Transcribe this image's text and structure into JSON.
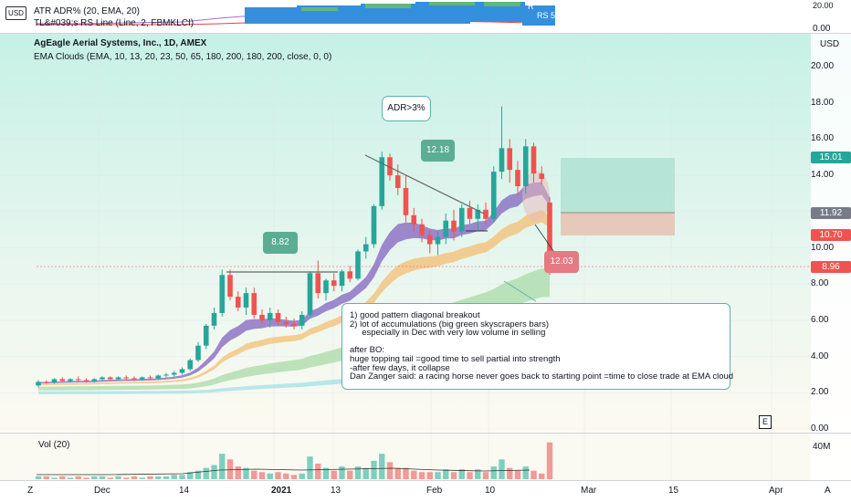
{
  "header": {
    "currency_top": "USD",
    "indicator1": "ATR ADR% (20, EMA, 20)",
    "indicator2": "TL&#039;s RS Line (Line, 2, FBMKLCI)",
    "rs_badge": "RS 5",
    "main_currency": "USD",
    "main_title": "AgEagle Aerial Systems, Inc., 1D, AMEX",
    "ema_line": "EMA Clouds (EMA, 10, 13, 20, 23, 50, 65, 180, 200, 180, 200, close, 0, 0)"
  },
  "top_pane_axis": {
    "top": "20.00",
    "bottom": "0.00",
    "currency": "USD"
  },
  "price_axis": [
    "20.00",
    "18.00",
    "16.00",
    "14.00",
    "12.00",
    "10.00",
    "8.00",
    "6.00",
    "4.00",
    "2.00",
    "0.00"
  ],
  "price_tags": [
    {
      "value": "15.01",
      "color": "#26a69a"
    },
    {
      "value": "11.92",
      "color": "#787b86"
    },
    {
      "value": "10.70",
      "color": "#ef5350"
    },
    {
      "value": "8.96",
      "color": "#ef5350"
    }
  ],
  "volume": {
    "label": "Vol (20)",
    "axis_max": "40M"
  },
  "time_axis": {
    "items": [
      "Dec",
      "14",
      "2021",
      "13",
      "Feb",
      "10",
      "Mar",
      "15",
      "Apr"
    ]
  },
  "corner_labels": {
    "left": "Z",
    "right": "A",
    "e_button": "E"
  },
  "annotations": {
    "adr": "ADR>3%",
    "c1": "8.82",
    "c2": "12.18",
    "c3": "12.03",
    "note": [
      "1) good pattern diagonal breakout",
      "2) lot of accumulations (big green skyscrapers bars)",
      "     especially in Dec with very low volume in selling",
      "",
      "after BO:",
      "huge topping tail =good time to sell partial into strength",
      "-after few days, it collapse",
      "Dan Zanger said: a racing horse never goes back to starting point =time to close trade at EMA cloud"
    ]
  },
  "colors": {
    "up": "#26a69a",
    "down": "#ef5350",
    "bg_top": "#c6f1e6",
    "bg_bottom": "#fdfaf0",
    "cloud_fast": "#8e74c6",
    "cloud_mid": "#f4c27a",
    "cloud_slow": "#a5d9a4",
    "cloud_long": "#a6e2e9"
  },
  "chart_data": {
    "type": "candlestick",
    "title": "AgEagle Aerial Systems, Inc., 1D, AMEX",
    "ylim": [
      0,
      21
    ],
    "candles": [
      {
        "o": 2.4,
        "h": 2.7,
        "l": 2.3,
        "c": 2.6
      },
      {
        "o": 2.6,
        "h": 2.7,
        "l": 2.5,
        "c": 2.55
      },
      {
        "o": 2.55,
        "h": 2.8,
        "l": 2.5,
        "c": 2.75
      },
      {
        "o": 2.75,
        "h": 2.85,
        "l": 2.6,
        "c": 2.65
      },
      {
        "o": 2.65,
        "h": 2.8,
        "l": 2.55,
        "c": 2.75
      },
      {
        "o": 2.75,
        "h": 2.9,
        "l": 2.6,
        "c": 2.7
      },
      {
        "o": 2.7,
        "h": 2.8,
        "l": 2.55,
        "c": 2.65
      },
      {
        "o": 2.65,
        "h": 2.8,
        "l": 2.55,
        "c": 2.75
      },
      {
        "o": 2.75,
        "h": 2.9,
        "l": 2.65,
        "c": 2.85
      },
      {
        "o": 2.85,
        "h": 2.9,
        "l": 2.7,
        "c": 2.75
      },
      {
        "o": 2.75,
        "h": 2.9,
        "l": 2.7,
        "c": 2.85
      },
      {
        "o": 2.85,
        "h": 2.95,
        "l": 2.7,
        "c": 2.8
      },
      {
        "o": 2.8,
        "h": 2.9,
        "l": 2.65,
        "c": 2.75
      },
      {
        "o": 2.75,
        "h": 2.9,
        "l": 2.65,
        "c": 2.85
      },
      {
        "o": 2.85,
        "h": 2.95,
        "l": 2.75,
        "c": 2.8
      },
      {
        "o": 2.8,
        "h": 3.0,
        "l": 2.7,
        "c": 2.95
      },
      {
        "o": 2.95,
        "h": 3.1,
        "l": 2.85,
        "c": 3.0
      },
      {
        "o": 3.0,
        "h": 3.2,
        "l": 2.9,
        "c": 3.1
      },
      {
        "o": 3.1,
        "h": 3.4,
        "l": 3.0,
        "c": 3.3
      },
      {
        "o": 3.3,
        "h": 3.9,
        "l": 3.2,
        "c": 3.8
      },
      {
        "o": 3.8,
        "h": 4.8,
        "l": 3.7,
        "c": 4.6
      },
      {
        "o": 4.6,
        "h": 5.8,
        "l": 4.4,
        "c": 5.7
      },
      {
        "o": 5.7,
        "h": 6.7,
        "l": 5.5,
        "c": 6.4
      },
      {
        "o": 6.4,
        "h": 8.8,
        "l": 6.2,
        "c": 8.5
      },
      {
        "o": 8.5,
        "h": 8.8,
        "l": 7.1,
        "c": 7.3
      },
      {
        "o": 7.3,
        "h": 7.6,
        "l": 6.5,
        "c": 6.7
      },
      {
        "o": 6.7,
        "h": 7.8,
        "l": 6.3,
        "c": 7.5
      },
      {
        "o": 7.5,
        "h": 7.8,
        "l": 6.1,
        "c": 6.3
      },
      {
        "o": 6.3,
        "h": 6.6,
        "l": 5.8,
        "c": 6.0
      },
      {
        "o": 6.0,
        "h": 6.7,
        "l": 5.6,
        "c": 6.4
      },
      {
        "o": 6.4,
        "h": 6.6,
        "l": 5.7,
        "c": 5.9
      },
      {
        "o": 5.9,
        "h": 6.2,
        "l": 5.6,
        "c": 5.8
      },
      {
        "o": 5.8,
        "h": 6.1,
        "l": 5.5,
        "c": 5.7
      },
      {
        "o": 5.7,
        "h": 6.5,
        "l": 5.5,
        "c": 6.3
      },
      {
        "o": 6.3,
        "h": 8.7,
        "l": 6.2,
        "c": 8.6
      },
      {
        "o": 8.6,
        "h": 9.3,
        "l": 7.2,
        "c": 7.5
      },
      {
        "o": 7.5,
        "h": 8.3,
        "l": 7.1,
        "c": 8.2
      },
      {
        "o": 8.2,
        "h": 8.6,
        "l": 7.6,
        "c": 7.9
      },
      {
        "o": 7.9,
        "h": 8.8,
        "l": 7.6,
        "c": 8.7
      },
      {
        "o": 8.7,
        "h": 9.0,
        "l": 8.1,
        "c": 8.3
      },
      {
        "o": 8.3,
        "h": 9.9,
        "l": 8.2,
        "c": 9.8
      },
      {
        "o": 9.8,
        "h": 10.6,
        "l": 9.4,
        "c": 10.2
      },
      {
        "o": 10.2,
        "h": 12.4,
        "l": 10.0,
        "c": 12.3
      },
      {
        "o": 12.3,
        "h": 15.3,
        "l": 12.1,
        "c": 15.0
      },
      {
        "o": 15.0,
        "h": 15.2,
        "l": 13.7,
        "c": 14.0
      },
      {
        "o": 14.0,
        "h": 14.6,
        "l": 12.9,
        "c": 13.3
      },
      {
        "o": 13.3,
        "h": 14.0,
        "l": 11.4,
        "c": 11.8
      },
      {
        "o": 11.8,
        "h": 12.2,
        "l": 10.9,
        "c": 11.3
      },
      {
        "o": 11.3,
        "h": 11.6,
        "l": 10.3,
        "c": 10.7
      },
      {
        "o": 10.7,
        "h": 11.0,
        "l": 9.7,
        "c": 10.2
      },
      {
        "o": 10.2,
        "h": 10.9,
        "l": 9.6,
        "c": 10.6
      },
      {
        "o": 10.6,
        "h": 11.9,
        "l": 10.2,
        "c": 11.5
      },
      {
        "o": 11.5,
        "h": 12.1,
        "l": 10.4,
        "c": 10.9
      },
      {
        "o": 10.9,
        "h": 12.4,
        "l": 10.6,
        "c": 12.2
      },
      {
        "o": 12.2,
        "h": 12.6,
        "l": 11.3,
        "c": 11.6
      },
      {
        "o": 11.6,
        "h": 12.4,
        "l": 11.0,
        "c": 12.1
      },
      {
        "o": 12.1,
        "h": 12.5,
        "l": 11.3,
        "c": 11.6
      },
      {
        "o": 11.6,
        "h": 14.5,
        "l": 11.4,
        "c": 14.2
      },
      {
        "o": 14.2,
        "h": 17.8,
        "l": 13.8,
        "c": 15.5
      },
      {
        "o": 15.5,
        "h": 16.0,
        "l": 13.6,
        "c": 14.3
      },
      {
        "o": 14.3,
        "h": 14.8,
        "l": 12.9,
        "c": 13.4
      },
      {
        "o": 13.4,
        "h": 16.0,
        "l": 13.0,
        "c": 15.6
      },
      {
        "o": 15.6,
        "h": 15.8,
        "l": 13.6,
        "c": 14.1
      },
      {
        "o": 14.1,
        "h": 14.5,
        "l": 13.5,
        "c": 13.8
      },
      {
        "o": 12.5,
        "h": 12.8,
        "l": 8.5,
        "c": 8.96
      }
    ],
    "volume": [
      2,
      2,
      1,
      2,
      1,
      2,
      1,
      2,
      2,
      1,
      2,
      1,
      2,
      1,
      2,
      2,
      2,
      3,
      3,
      5,
      6,
      8,
      10,
      18,
      14,
      9,
      8,
      6,
      5,
      4,
      5,
      4,
      3,
      4,
      16,
      11,
      8,
      6,
      9,
      6,
      9,
      8,
      13,
      18,
      12,
      8,
      8,
      6,
      5,
      5,
      5,
      7,
      5,
      7,
      5,
      7,
      5,
      9,
      14,
      8,
      6,
      9,
      6,
      4,
      26
    ]
  }
}
